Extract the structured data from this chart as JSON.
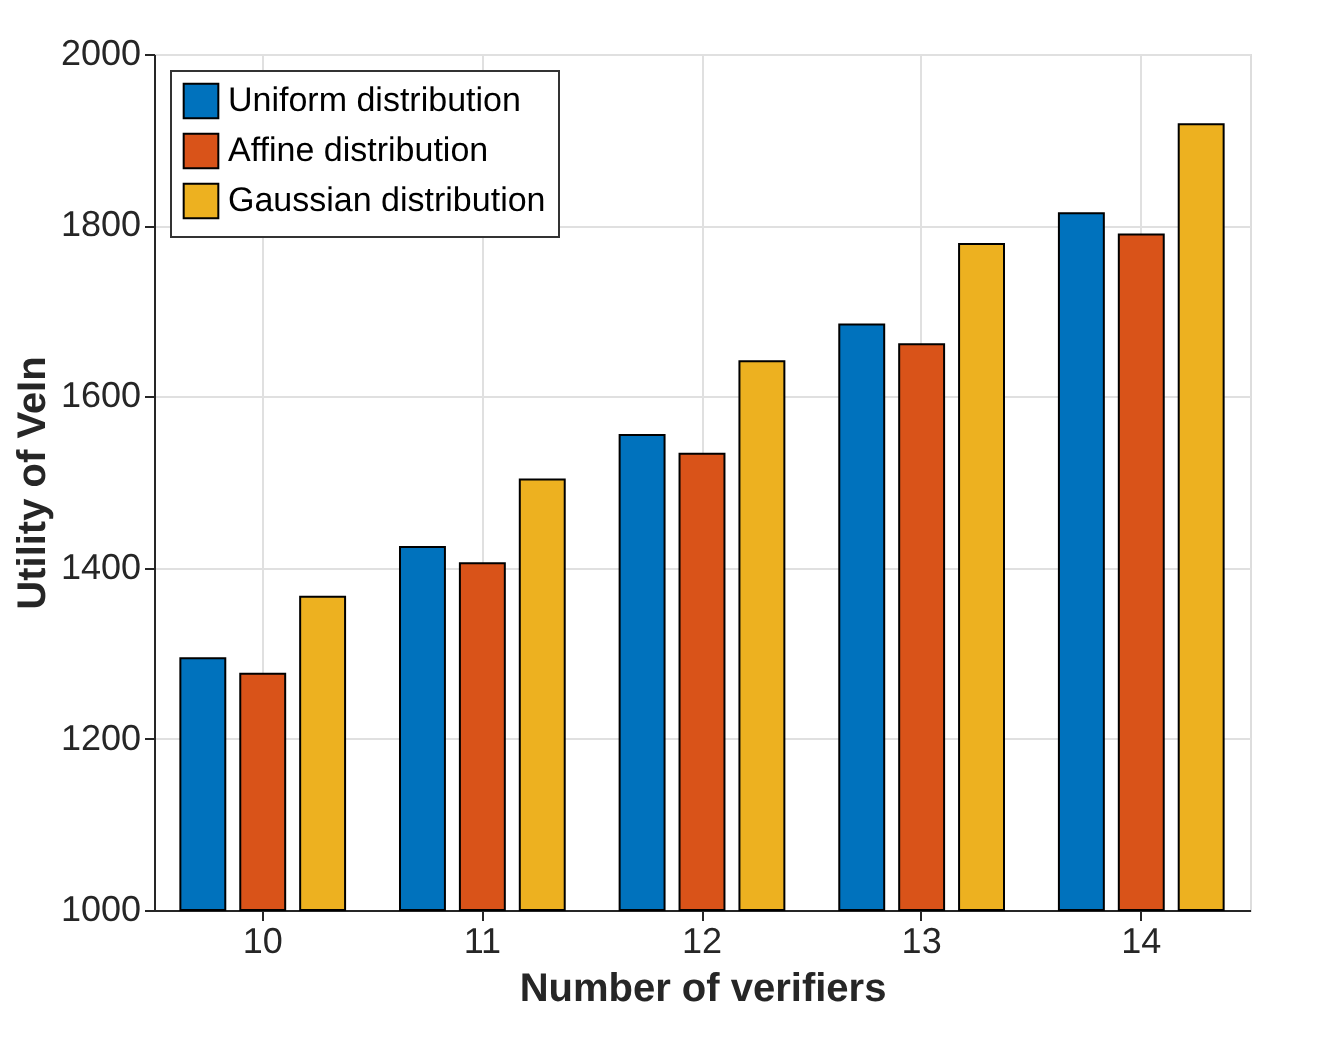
{
  "chart_data": {
    "type": "bar",
    "xlabel": "Number of verifiers",
    "ylabel": "Utility of VeIn",
    "categories": [
      "10",
      "11",
      "12",
      "13",
      "14"
    ],
    "series": [
      {
        "name": "Uniform distribution",
        "color": "#0072bd",
        "values": [
          1294,
          1424,
          1555,
          1684,
          1814
        ]
      },
      {
        "name": "Affine distribution",
        "color": "#d95319",
        "values": [
          1276,
          1405,
          1533,
          1661,
          1789
        ]
      },
      {
        "name": "Gaussian distribution",
        "color": "#edb120",
        "values": [
          1366,
          1503,
          1641,
          1778,
          1918
        ]
      }
    ],
    "ylim": [
      1000,
      2000
    ],
    "yticks": [
      1000,
      1200,
      1400,
      1600,
      1800,
      2000
    ],
    "grid": true,
    "legend": "top left"
  }
}
